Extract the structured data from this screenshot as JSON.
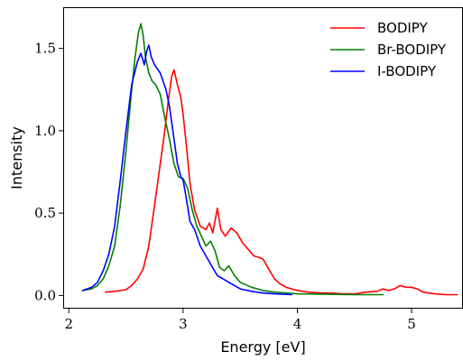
{
  "chart_data": {
    "type": "line",
    "xlabel": "Energy [eV]",
    "ylabel": "Intensity",
    "xlim": [
      1.95,
      5.45
    ],
    "ylim": [
      -0.08,
      1.75
    ],
    "xticks": [
      2,
      3,
      4,
      5
    ],
    "xtick_labels": [
      "2",
      "3",
      "4",
      "5"
    ],
    "yticks": [
      0.0,
      0.5,
      1.0,
      1.5
    ],
    "ytick_labels": [
      "0.0",
      "0.5",
      "1.0",
      "1.5"
    ],
    "grid": false,
    "legend_position": "top-right",
    "series": [
      {
        "name": "BODIPY",
        "color": "#ff0000",
        "points": [
          [
            2.32,
            0.02
          ],
          [
            2.4,
            0.025
          ],
          [
            2.5,
            0.035
          ],
          [
            2.55,
            0.06
          ],
          [
            2.6,
            0.1
          ],
          [
            2.65,
            0.16
          ],
          [
            2.7,
            0.3
          ],
          [
            2.75,
            0.55
          ],
          [
            2.8,
            0.8
          ],
          [
            2.84,
            1.0
          ],
          [
            2.87,
            1.18
          ],
          [
            2.9,
            1.33
          ],
          [
            2.92,
            1.37
          ],
          [
            2.95,
            1.28
          ],
          [
            2.98,
            1.2
          ],
          [
            3.0,
            1.1
          ],
          [
            3.03,
            0.9
          ],
          [
            3.06,
            0.68
          ],
          [
            3.1,
            0.52
          ],
          [
            3.15,
            0.42
          ],
          [
            3.2,
            0.4
          ],
          [
            3.23,
            0.44
          ],
          [
            3.26,
            0.38
          ],
          [
            3.3,
            0.53
          ],
          [
            3.33,
            0.4
          ],
          [
            3.37,
            0.36
          ],
          [
            3.42,
            0.41
          ],
          [
            3.47,
            0.38
          ],
          [
            3.52,
            0.32
          ],
          [
            3.57,
            0.28
          ],
          [
            3.62,
            0.24
          ],
          [
            3.67,
            0.23
          ],
          [
            3.7,
            0.22
          ],
          [
            3.75,
            0.16
          ],
          [
            3.8,
            0.1
          ],
          [
            3.85,
            0.07
          ],
          [
            3.9,
            0.05
          ],
          [
            4.0,
            0.03
          ],
          [
            4.1,
            0.02
          ],
          [
            4.2,
            0.015
          ],
          [
            4.3,
            0.015
          ],
          [
            4.4,
            0.01
          ],
          [
            4.5,
            0.01
          ],
          [
            4.6,
            0.02
          ],
          [
            4.7,
            0.025
          ],
          [
            4.75,
            0.04
          ],
          [
            4.8,
            0.03
          ],
          [
            4.85,
            0.04
          ],
          [
            4.9,
            0.06
          ],
          [
            4.95,
            0.05
          ],
          [
            5.0,
            0.05
          ],
          [
            5.05,
            0.04
          ],
          [
            5.1,
            0.02
          ],
          [
            5.2,
            0.01
          ],
          [
            5.3,
            0.005
          ],
          [
            5.4,
            0.005
          ]
        ]
      },
      {
        "name": "Br-BODIPY",
        "color": "#008000",
        "points": [
          [
            2.12,
            0.03
          ],
          [
            2.2,
            0.04
          ],
          [
            2.25,
            0.06
          ],
          [
            2.3,
            0.1
          ],
          [
            2.35,
            0.18
          ],
          [
            2.4,
            0.3
          ],
          [
            2.45,
            0.55
          ],
          [
            2.5,
            0.88
          ],
          [
            2.55,
            1.25
          ],
          [
            2.58,
            1.45
          ],
          [
            2.61,
            1.6
          ],
          [
            2.63,
            1.65
          ],
          [
            2.65,
            1.58
          ],
          [
            2.67,
            1.45
          ],
          [
            2.7,
            1.35
          ],
          [
            2.73,
            1.3
          ],
          [
            2.76,
            1.28
          ],
          [
            2.8,
            1.22
          ],
          [
            2.84,
            1.08
          ],
          [
            2.88,
            0.95
          ],
          [
            2.92,
            0.8
          ],
          [
            2.96,
            0.72
          ],
          [
            3.0,
            0.71
          ],
          [
            3.04,
            0.65
          ],
          [
            3.08,
            0.52
          ],
          [
            3.12,
            0.42
          ],
          [
            3.16,
            0.36
          ],
          [
            3.2,
            0.3
          ],
          [
            3.24,
            0.33
          ],
          [
            3.28,
            0.27
          ],
          [
            3.32,
            0.17
          ],
          [
            3.36,
            0.15
          ],
          [
            3.4,
            0.18
          ],
          [
            3.45,
            0.12
          ],
          [
            3.5,
            0.08
          ],
          [
            3.6,
            0.05
          ],
          [
            3.7,
            0.03
          ],
          [
            3.8,
            0.02
          ],
          [
            4.0,
            0.01
          ],
          [
            4.5,
            0.005
          ],
          [
            4.75,
            0.005
          ]
        ]
      },
      {
        "name": "I-BODIPY",
        "color": "#0000ff",
        "points": [
          [
            2.12,
            0.03
          ],
          [
            2.2,
            0.05
          ],
          [
            2.25,
            0.08
          ],
          [
            2.3,
            0.15
          ],
          [
            2.35,
            0.25
          ],
          [
            2.4,
            0.42
          ],
          [
            2.45,
            0.7
          ],
          [
            2.5,
            1.0
          ],
          [
            2.55,
            1.28
          ],
          [
            2.6,
            1.42
          ],
          [
            2.63,
            1.47
          ],
          [
            2.66,
            1.4
          ],
          [
            2.68,
            1.48
          ],
          [
            2.7,
            1.52
          ],
          [
            2.72,
            1.45
          ],
          [
            2.75,
            1.4
          ],
          [
            2.8,
            1.35
          ],
          [
            2.85,
            1.25
          ],
          [
            2.88,
            1.15
          ],
          [
            2.92,
            0.95
          ],
          [
            2.95,
            0.8
          ],
          [
            2.98,
            0.72
          ],
          [
            3.0,
            0.7
          ],
          [
            3.03,
            0.58
          ],
          [
            3.06,
            0.45
          ],
          [
            3.1,
            0.4
          ],
          [
            3.15,
            0.3
          ],
          [
            3.2,
            0.24
          ],
          [
            3.25,
            0.18
          ],
          [
            3.3,
            0.12
          ],
          [
            3.35,
            0.1
          ],
          [
            3.4,
            0.08
          ],
          [
            3.5,
            0.04
          ],
          [
            3.6,
            0.025
          ],
          [
            3.7,
            0.015
          ],
          [
            3.8,
            0.01
          ],
          [
            3.95,
            0.005
          ]
        ]
      }
    ]
  }
}
